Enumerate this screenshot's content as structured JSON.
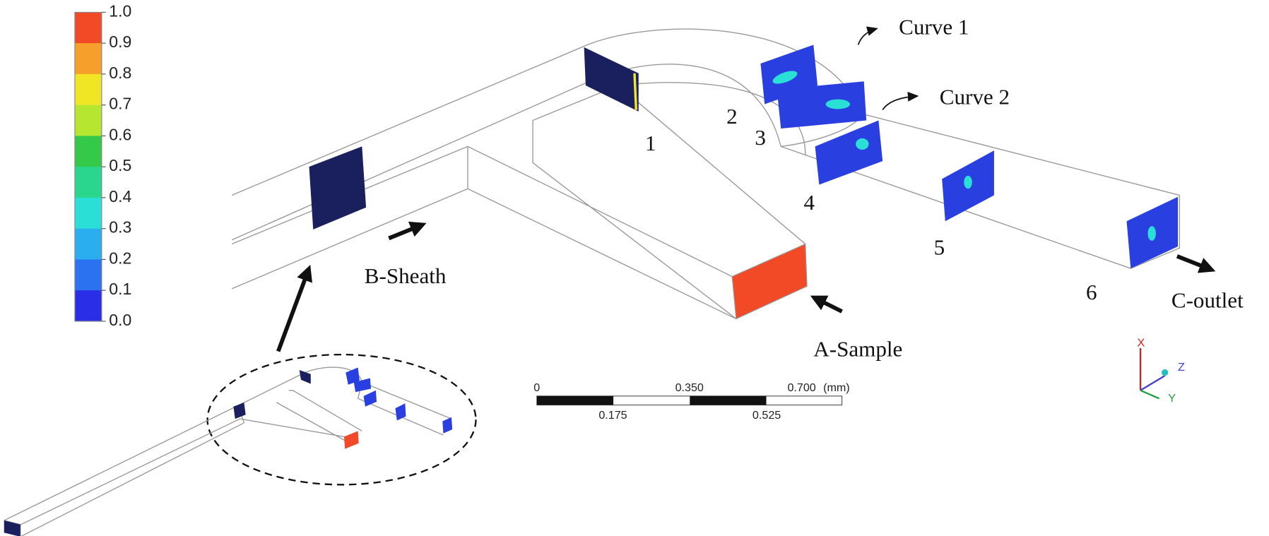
{
  "colorbar": {
    "ticks": [
      "1.0",
      "0.9",
      "0.8",
      "0.7",
      "0.6",
      "0.5",
      "0.4",
      "0.3",
      "0.2",
      "0.1",
      "0.0"
    ],
    "colors": [
      "#f24a26",
      "#f5a02a",
      "#f0e626",
      "#b6e630",
      "#35c94a",
      "#2ad68e",
      "#2ae0d6",
      "#2aaef0",
      "#2a72f0",
      "#2a2ee6"
    ]
  },
  "labels": {
    "curve1": "Curve 1",
    "curve2": "Curve 2",
    "s1": "1",
    "s2": "2",
    "s3": "3",
    "s4": "4",
    "s5": "5",
    "s6": "6",
    "sheath": "B-Sheath",
    "sample": "A-Sample",
    "outlet": "C-outlet"
  },
  "scale_bar": {
    "top": [
      "0",
      "0.350",
      "0.700"
    ],
    "unit": "(mm)",
    "bottom": [
      "0.175",
      "0.525"
    ]
  },
  "axes": {
    "x": "X",
    "y": "Y",
    "z": "Z"
  }
}
